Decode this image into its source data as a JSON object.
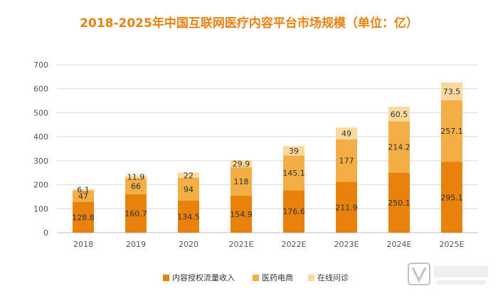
{
  "chart_data": {
    "type": "bar",
    "stacked": true,
    "title": "2018-2025年中国互联网医疗内容平台市场规模（单位：亿）",
    "categories": [
      "2018",
      "2019",
      "2020",
      "2021E",
      "2022E",
      "2023E",
      "2024E",
      "2025E"
    ],
    "ylim": [
      0,
      700
    ],
    "yticks": [
      0,
      100,
      200,
      300,
      400,
      500,
      600,
      700
    ],
    "grid": true,
    "legend_position": "bottom",
    "series": [
      {
        "name": "内容授权流量收入",
        "color": "#E8820C",
        "values": [
          128.8,
          160.7,
          134.5,
          154.9,
          176.6,
          211.9,
          250.1,
          295.1
        ]
      },
      {
        "name": "医药电商",
        "color": "#F4AE46",
        "values": [
          47,
          66,
          94,
          118,
          145.1,
          177,
          214.2,
          257.1
        ]
      },
      {
        "name": "在线问诊",
        "color": "#FAD89E",
        "values": [
          6.1,
          11.9,
          22,
          29.9,
          39,
          49,
          60.5,
          73.5
        ]
      }
    ],
    "label_color": "#333333",
    "title_color": "#E8820C",
    "axis_text_color": "#555555",
    "grid_color": "#d9d9d9"
  },
  "watermark": {
    "text": "动脉网 vcbeat.top"
  }
}
